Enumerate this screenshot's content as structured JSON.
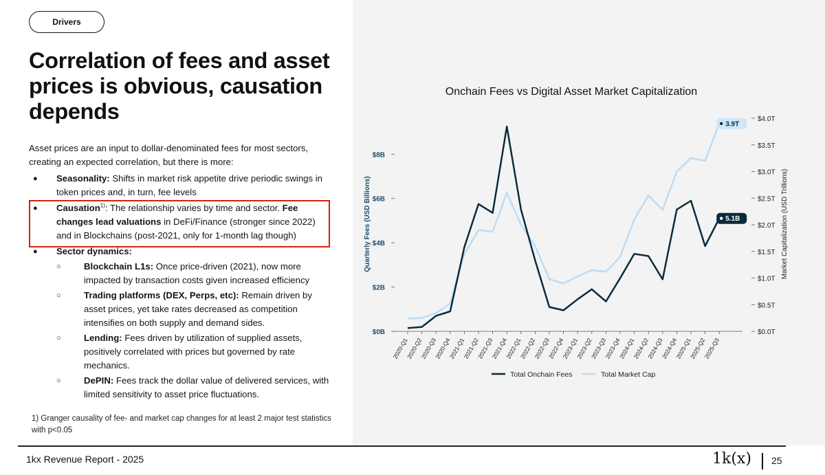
{
  "badge": "Drivers",
  "headline": "Correlation of fees and asset prices is obvious, causation depends",
  "intro": "Asset prices are an input to dollar-denominated fees for most sectors, creating an expected correlation, but there is more:",
  "bullets": {
    "seasonality": {
      "label": "Seasonality:",
      "text": " Shifts in market risk appetite drive periodic swings in token prices and, in turn, fee levels"
    },
    "causation": {
      "label": "Causation",
      "sup": "1)",
      "text1": ": The relationship varies by time and sector. ",
      "bold2": "Fee changes lead valuations",
      "text2": " in DeFi/Finance (stronger since 2022) and in Blockchains (post-2021, only for 1-month lag though)"
    },
    "sector": {
      "label": "Sector dynamics:",
      "items": [
        {
          "label": "Blockchain L1s:",
          "text": " Once price-driven (2021), now more impacted by transaction costs given increased efficiency"
        },
        {
          "label": "Trading platforms (DEX, Perps, etc):",
          "text": " Remain driven by asset prices, yet take rates decreased as competition intensifies on both supply and demand sides."
        },
        {
          "label": "Lending:",
          "text": " Fees driven by utilization of supplied assets, positively correlated with prices but governed by rate mechanics."
        },
        {
          "label": "DePIN:",
          "text": " Fees track the dollar value of delivered services, with limited sensitivity to asset price fluctuations."
        }
      ]
    }
  },
  "footnote": "1) Granger causality of fee- and market cap changes for at least 2 major test statistics with p<0.05",
  "footer": {
    "report": "1kx Revenue Report  - 2025",
    "logo": "1k(x)",
    "page": "25"
  },
  "colors": {
    "fees": "#0b2b3c",
    "mcap": "#bcdcf5",
    "highlight": "#d42010",
    "axis_left": "#1d4e6f"
  },
  "chart_data": {
    "type": "line",
    "title": "Onchain Fees vs Digital Asset Market Capitalization",
    "ylabel": "Quarterly Fees (USD Billions)",
    "y2label": "Market Capitalization (USD Trillions)",
    "categories": [
      "2020-Q1",
      "2020-Q2",
      "2020-Q3",
      "2020-Q4",
      "2021-Q1",
      "2021-Q2",
      "2021-Q3",
      "2021-Q4",
      "2022-Q1",
      "2022-Q2",
      "2022-Q3",
      "2022-Q4",
      "2023-Q1",
      "2023-Q2",
      "2023-Q3",
      "2023-Q4",
      "2024-Q1",
      "2024-Q2",
      "2024-Q3",
      "2024-Q4",
      "2025-Q1",
      "2025-Q2",
      "2025-Q3"
    ],
    "ylim": [
      0,
      9.5
    ],
    "y2lim": [
      0,
      4.0
    ],
    "yticks": [
      {
        "v": 0,
        "label": "$0B"
      },
      {
        "v": 2,
        "label": "$2B"
      },
      {
        "v": 4,
        "label": "$4B"
      },
      {
        "v": 6,
        "label": "$6B"
      },
      {
        "v": 8,
        "label": "$8B"
      }
    ],
    "y2ticks": [
      {
        "v": 0,
        "label": "$0.0T"
      },
      {
        "v": 0.5,
        "label": "$0.5T"
      },
      {
        "v": 1.0,
        "label": "$1.0T"
      },
      {
        "v": 1.5,
        "label": "$1.5T"
      },
      {
        "v": 2.0,
        "label": "$2.0T"
      },
      {
        "v": 2.5,
        "label": "$2.5T"
      },
      {
        "v": 3.0,
        "label": "$3.0T"
      },
      {
        "v": 3.5,
        "label": "$3.5T"
      },
      {
        "v": 4.0,
        "label": "$4.0T"
      }
    ],
    "series": [
      {
        "name": "Total Onchain Fees",
        "axis": "left",
        "values": [
          0.15,
          0.2,
          0.7,
          0.9,
          3.8,
          5.75,
          5.35,
          9.25,
          5.5,
          3.2,
          1.1,
          0.95,
          1.45,
          1.9,
          1.35,
          2.4,
          3.5,
          3.4,
          2.35,
          5.5,
          5.9,
          3.85,
          5.1
        ],
        "end_label": "5.1B"
      },
      {
        "name": "Total Market Cap",
        "axis": "right",
        "values": [
          0.24,
          0.25,
          0.34,
          0.52,
          1.45,
          1.9,
          1.87,
          2.6,
          2.0,
          1.6,
          0.98,
          0.9,
          1.03,
          1.15,
          1.12,
          1.4,
          2.1,
          2.55,
          2.28,
          3.0,
          3.25,
          3.2,
          3.9
        ],
        "end_label": "3.9T"
      }
    ],
    "legend": "bottom",
    "grid": false
  }
}
